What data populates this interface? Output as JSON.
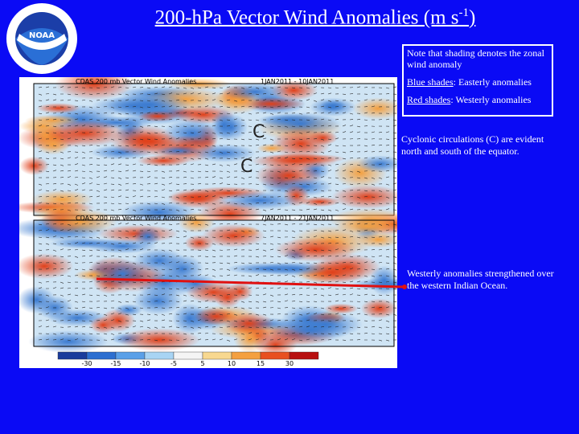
{
  "title": {
    "main": "200-hPa Vector Wind Anomalies (m s",
    "sup": "-1",
    "close": ")"
  },
  "note_box": {
    "line1": "Note that shading denotes the zonal wind anomaly",
    "blue_key": "Blue shades",
    "blue_text": ": Easterly anomalies",
    "red_key": "Red shades",
    "red_text": ":  Westerly anomalies"
  },
  "panels": [
    {
      "title": "CDAS 200 mb Vector Wind Anomalies",
      "dates": "1JAN2011 - 10JAN2011",
      "labels": [
        "C",
        "C"
      ]
    },
    {
      "title": "CDAS 200 mb Vector Wind Anomalies",
      "dates": "7JAN2011 - 21JAN2011"
    }
  ],
  "colorbar": [
    "-30",
    "-15",
    "-10",
    "-5",
    "5",
    "10",
    "15",
    "30"
  ],
  "comments": [
    "Cyclonic circulations (C) are evident north and south of the equator.",
    "Westerly anomalies strengthened over the western Indian Ocean."
  ]
}
